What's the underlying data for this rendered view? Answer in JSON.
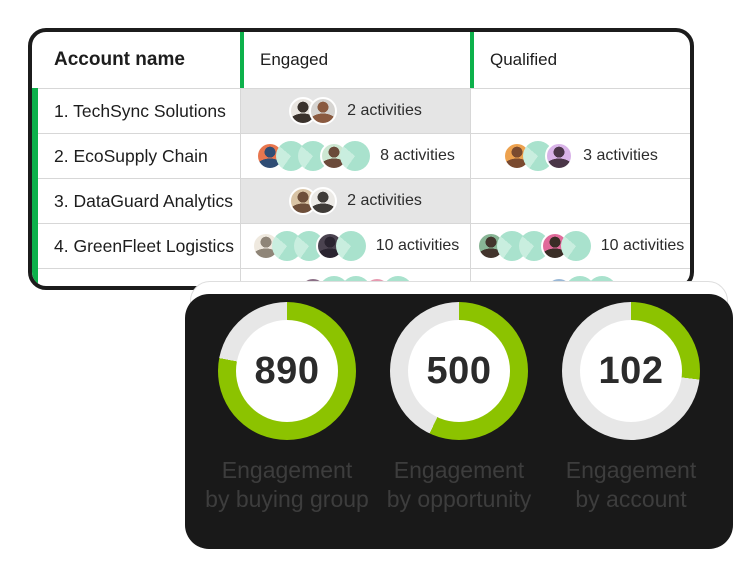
{
  "colors": {
    "table_accent_green": "#0db14b",
    "chart_arc_green": "#8cc300",
    "chart_ring_gray": "#e7e7e7",
    "row_highlight_gray": "#e5e5e5",
    "card_border_black": "#1c1c1c",
    "mint": "#a9e2cd",
    "mint_light": "#c9eedf"
  },
  "table": {
    "columns": [
      "Account name",
      "Engaged",
      "Qualified"
    ],
    "activities_suffix": "activities",
    "rows": [
      {
        "account": "1. TechSync Solutions",
        "engaged": {
          "highlight": true,
          "label": "2 activities",
          "avatars": [
            {
              "kind": "photo",
              "bg": "#e9e5e0",
              "fg": "#3a322c"
            },
            {
              "kind": "photo",
              "bg": "#d6d4d1",
              "fg": "#8a5a40"
            }
          ]
        },
        "qualified": null
      },
      {
        "account": "2. EcoSupply Chain",
        "engaged": {
          "highlight": false,
          "label": "8 activities",
          "avatars": [
            {
              "kind": "photo",
              "bg": "#e8764e",
              "fg": "#2f4d74"
            },
            {
              "kind": "mint"
            },
            {
              "kind": "mint"
            },
            {
              "kind": "photo",
              "bg": "#cde7d2",
              "fg": "#6b4a3a"
            },
            {
              "kind": "mint"
            }
          ]
        },
        "qualified": {
          "highlight": false,
          "label": "3 activities",
          "avatars": [
            {
              "kind": "photo",
              "bg": "#eda24f",
              "fg": "#7a4a2f"
            },
            {
              "kind": "mint"
            },
            {
              "kind": "photo",
              "bg": "#d9b3e8",
              "fg": "#4a3547"
            }
          ]
        }
      },
      {
        "account": "3. DataGuard Analytics",
        "engaged": {
          "highlight": true,
          "label": "2 activities",
          "avatars": [
            {
              "kind": "photo",
              "bg": "#d9c4a5",
              "fg": "#6e4f3a"
            },
            {
              "kind": "photo",
              "bg": "#eceae6",
              "fg": "#3f3b37"
            }
          ]
        },
        "qualified": null
      },
      {
        "account": "4. GreenFleet Logistics",
        "engaged": {
          "highlight": false,
          "label": "10 activities",
          "avatars": [
            {
              "kind": "photo",
              "bg": "#efe9df",
              "fg": "#8f8578"
            },
            {
              "kind": "mint"
            },
            {
              "kind": "mint"
            },
            {
              "kind": "photo",
              "bg": "#4b4350",
              "fg": "#2a2430"
            },
            {
              "kind": "mint"
            }
          ]
        },
        "qualified": {
          "highlight": false,
          "label": "10 activities",
          "avatars": [
            {
              "kind": "photo",
              "bg": "#88b595",
              "fg": "#42342c"
            },
            {
              "kind": "mint"
            },
            {
              "kind": "mint"
            },
            {
              "kind": "photo",
              "bg": "#e06a9a",
              "fg": "#3a2d26"
            },
            {
              "kind": "mint"
            }
          ]
        }
      },
      {
        "account": "",
        "engaged": {
          "highlight": false,
          "label": "",
          "avatars": [
            {
              "kind": "photo",
              "bg": "#8b6f86",
              "fg": "#463a44"
            },
            {
              "kind": "mint"
            },
            {
              "kind": "mint"
            },
            {
              "kind": "photo",
              "bg": "#e69ab0",
              "fg": "#5a3f46"
            },
            {
              "kind": "mint"
            }
          ]
        },
        "qualified": {
          "highlight": false,
          "label": "",
          "avatars": [
            {
              "kind": "photo",
              "bg": "#9ab8d6",
              "fg": "#3d4450"
            },
            {
              "kind": "mint"
            },
            {
              "kind": "mint"
            }
          ]
        }
      }
    ]
  },
  "chart_data": [
    {
      "type": "donut",
      "value": "890",
      "percent": 78,
      "label_lines": [
        "Engagement",
        "by buying group"
      ],
      "arc_color": "#8cc300",
      "track_color": "#e7e7e7"
    },
    {
      "type": "donut",
      "value": "500",
      "percent": 57,
      "label_lines": [
        "Engagement",
        "by opportunity"
      ],
      "arc_color": "#8cc300",
      "track_color": "#e7e7e7"
    },
    {
      "type": "donut",
      "value": "102",
      "percent": 27,
      "label_lines": [
        "Engagement",
        "by account"
      ],
      "arc_color": "#8cc300",
      "track_color": "#e7e7e7"
    }
  ]
}
